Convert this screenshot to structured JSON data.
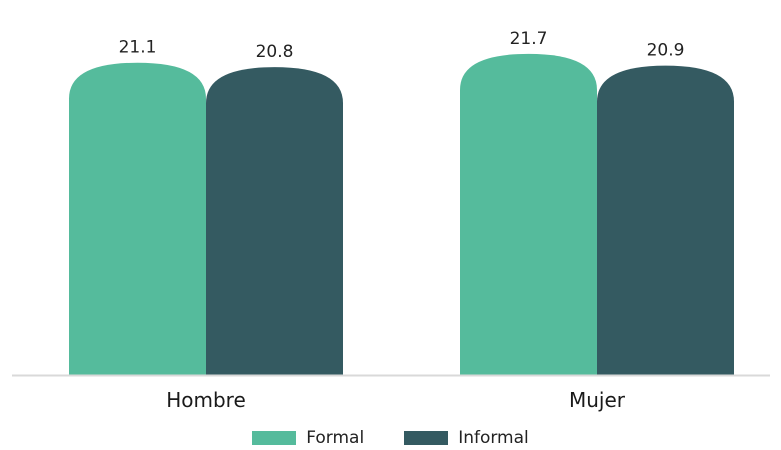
{
  "chart_data": {
    "type": "bar",
    "categories": [
      "Hombre",
      "Mujer"
    ],
    "series": [
      {
        "name": "Formal",
        "values": [
          21.1,
          21.7
        ],
        "color": "#55bb9c"
      },
      {
        "name": "Informal",
        "values": [
          20.8,
          20.9
        ],
        "color": "#345a61"
      }
    ],
    "ylim": [
      0,
      24
    ],
    "grid": false,
    "legend_position": "bottom-center",
    "baseline_color": "#d9d9d9"
  }
}
